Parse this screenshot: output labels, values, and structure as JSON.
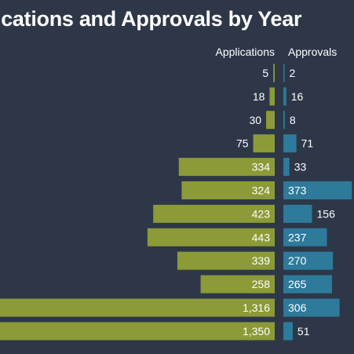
{
  "colors": {
    "background": "#2d3748",
    "applications": "#8c9a37",
    "approvals": "#2e7a9a",
    "text": "#ffffff"
  },
  "chart_data": {
    "type": "bar",
    "title": "ications and Approvals by Year",
    "orientation": "horizontal-butterfly",
    "grid": false,
    "legend": "column headers above bars",
    "series": [
      {
        "name": "Applications",
        "values": [
          5,
          18,
          30,
          75,
          334,
          324,
          423,
          443,
          339,
          258,
          1316,
          1350
        ],
        "labels": [
          "5",
          "18",
          "30",
          "75",
          "334",
          "324",
          "423",
          "443",
          "339",
          "258",
          "1,316",
          "1,350"
        ]
      },
      {
        "name": "Approvals",
        "values": [
          2,
          16,
          8,
          71,
          33,
          373,
          156,
          237,
          270,
          265,
          306,
          51
        ],
        "labels": [
          "2",
          "16",
          "8",
          "71",
          "33",
          "373",
          "156",
          "237",
          "270",
          "265",
          "306",
          "51"
        ]
      }
    ]
  }
}
